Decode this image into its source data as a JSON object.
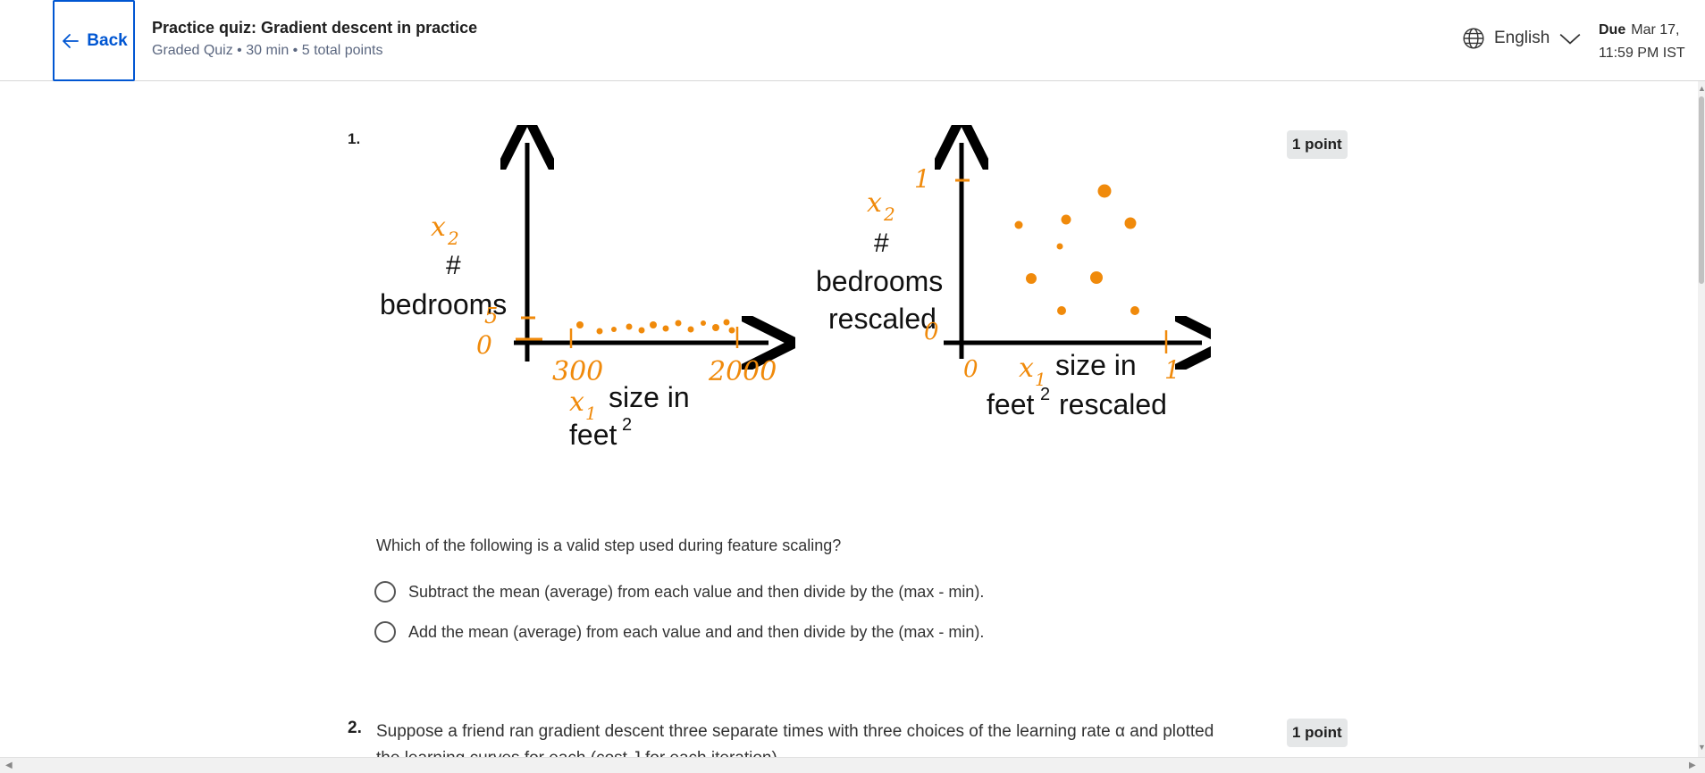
{
  "header": {
    "back_label": "Back",
    "title": "Practice quiz: Gradient descent in practice",
    "meta": "Graded Quiz • 30 min • 5 total points",
    "language": "English",
    "due_label": "Due",
    "due_date": "Mar 17,",
    "due_time": "11:59 PM IST"
  },
  "question1": {
    "number": "1.",
    "points": "1 point",
    "figure": {
      "left": {
        "y_var": "x",
        "y_sub": "2",
        "y_hash": "#",
        "y_label": "bedrooms",
        "y_tick_top": "5",
        "y_tick_zero": "0",
        "x_tick_min": "300",
        "x_tick_max": "2000",
        "x_var": "x",
        "x_sub": "1",
        "x_label": "size in",
        "x_label2": "feet",
        "x_sup": "2"
      },
      "right": {
        "y_var": "x",
        "y_sub": "2",
        "y_hash": "#",
        "y_label": "bedrooms",
        "y_label2": "rescaled",
        "y_tick_top": "1",
        "y_tick_zero": "0",
        "x_tick_zero": "0",
        "x_tick_max": "1",
        "x_var": "x",
        "x_sub": "1",
        "x_label": "size in",
        "x_label2": "feet",
        "x_sup": "2",
        "x_label3": "rescaled"
      },
      "color_orange": "#f08a0b"
    },
    "text": "Which of the following is a valid step used during feature scaling?",
    "options": [
      "Subtract the mean (average) from each value and then divide by the (max - min).",
      "Add the mean (average) from each value and and then divide by the (max - min)."
    ]
  },
  "question2": {
    "number": "2.",
    "points": "1 point",
    "text": "Suppose a friend ran gradient descent three separate times with three choices of the learning rate α and plotted the learning curves for each (cost J for each iteration)."
  }
}
